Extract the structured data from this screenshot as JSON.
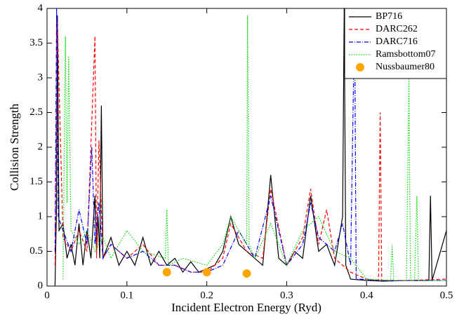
{
  "chart_data": {
    "type": "line",
    "xlabel": "Incident Electron Energy (Ryd)",
    "ylabel": "Collision Strength",
    "xlim": [
      0,
      0.5
    ],
    "xticks": [
      0,
      0.1,
      0.2,
      0.3,
      0.4,
      0.5
    ],
    "ylim": [
      0,
      4
    ],
    "yticks": [
      0,
      0.5,
      1,
      1.5,
      2,
      2.5,
      3,
      3.5,
      4
    ],
    "legend": "upper right",
    "series": [
      {
        "name": "BP716",
        "color": "#000000",
        "style": "solid",
        "x": [
          0.01,
          0.012,
          0.013,
          0.015,
          0.02,
          0.025,
          0.03,
          0.035,
          0.04,
          0.045,
          0.05,
          0.055,
          0.06,
          0.062,
          0.064,
          0.066,
          0.068,
          0.07,
          0.08,
          0.09,
          0.1,
          0.11,
          0.12,
          0.13,
          0.14,
          0.15,
          0.16,
          0.17,
          0.18,
          0.19,
          0.2,
          0.21,
          0.22,
          0.23,
          0.24,
          0.25,
          0.26,
          0.27,
          0.28,
          0.29,
          0.3,
          0.31,
          0.32,
          0.33,
          0.34,
          0.35,
          0.36,
          0.37,
          0.372,
          0.374,
          0.38,
          0.4,
          0.42,
          0.45,
          0.478,
          0.48,
          0.482,
          0.5
        ],
        "values": [
          0.0,
          1.2,
          3.9,
          0.8,
          0.9,
          0.4,
          0.6,
          0.3,
          0.9,
          0.3,
          0.8,
          0.4,
          1.3,
          0.5,
          1.0,
          0.4,
          2.6,
          0.4,
          0.7,
          0.3,
          0.5,
          0.3,
          0.7,
          0.3,
          0.5,
          0.3,
          0.4,
          0.2,
          0.35,
          0.2,
          0.25,
          0.3,
          0.5,
          1.0,
          0.6,
          0.5,
          0.4,
          0.3,
          1.6,
          0.4,
          0.3,
          0.5,
          0.4,
          1.3,
          0.5,
          0.6,
          0.3,
          1.0,
          4.0,
          0.3,
          0.1,
          0.08,
          0.07,
          0.08,
          0.08,
          1.3,
          0.08,
          0.8
        ]
      },
      {
        "name": "DARC262",
        "color": "#ff0000",
        "style": "dashed",
        "x": [
          0.01,
          0.013,
          0.02,
          0.03,
          0.04,
          0.05,
          0.06,
          0.062,
          0.065,
          0.07,
          0.08,
          0.1,
          0.12,
          0.14,
          0.16,
          0.18,
          0.2,
          0.22,
          0.23,
          0.25,
          0.27,
          0.28,
          0.3,
          0.32,
          0.33,
          0.34,
          0.35,
          0.36,
          0.38,
          0.4,
          0.415,
          0.417,
          0.419,
          0.45,
          0.5
        ],
        "values": [
          0.3,
          3.8,
          0.7,
          0.5,
          0.8,
          0.5,
          3.6,
          0.4,
          2.1,
          0.4,
          0.6,
          0.4,
          0.6,
          0.3,
          0.3,
          0.2,
          0.2,
          0.4,
          0.9,
          0.5,
          0.4,
          1.4,
          0.3,
          0.7,
          1.4,
          0.6,
          1.1,
          0.4,
          0.2,
          0.1,
          0.08,
          2.5,
          0.08,
          0.08,
          0.1
        ]
      },
      {
        "name": "DARC716",
        "color": "#0000ff",
        "style": "dashdot",
        "x": [
          0.01,
          0.012,
          0.014,
          0.02,
          0.03,
          0.04,
          0.05,
          0.056,
          0.06,
          0.065,
          0.07,
          0.08,
          0.1,
          0.12,
          0.14,
          0.16,
          0.18,
          0.2,
          0.22,
          0.24,
          0.26,
          0.28,
          0.3,
          0.32,
          0.33,
          0.34,
          0.36,
          0.37,
          0.38,
          0.385,
          0.387,
          0.39,
          0.42,
          0.45,
          0.5
        ],
        "values": [
          0.5,
          4.0,
          1.0,
          0.8,
          0.5,
          1.1,
          0.6,
          2.0,
          0.6,
          1.2,
          0.4,
          0.6,
          0.4,
          0.5,
          0.3,
          0.3,
          0.2,
          0.2,
          0.3,
          0.8,
          0.4,
          1.3,
          0.3,
          0.6,
          1.2,
          0.7,
          0.5,
          0.9,
          0.3,
          3.9,
          0.1,
          0.1,
          0.08,
          0.08,
          0.08
        ]
      },
      {
        "name": "Ramsbottom07",
        "color": "#00dd00",
        "style": "dotted",
        "x": [
          0.02,
          0.023,
          0.025,
          0.027,
          0.03,
          0.04,
          0.05,
          0.06,
          0.07,
          0.08,
          0.1,
          0.12,
          0.148,
          0.15,
          0.152,
          0.17,
          0.2,
          0.22,
          0.23,
          0.25,
          0.251,
          0.253,
          0.26,
          0.28,
          0.3,
          0.32,
          0.34,
          0.36,
          0.38,
          0.4,
          0.43,
          0.432,
          0.434,
          0.45,
          0.453,
          0.455,
          0.46,
          0.463,
          0.465,
          0.5
        ],
        "values": [
          0.1,
          3.6,
          1.2,
          3.3,
          0.8,
          0.6,
          0.8,
          0.5,
          0.7,
          0.4,
          0.8,
          0.5,
          0.4,
          1.1,
          0.3,
          0.4,
          0.3,
          0.6,
          1.0,
          0.6,
          3.9,
          0.6,
          0.4,
          0.9,
          0.3,
          0.8,
          1.0,
          0.5,
          0.4,
          0.1,
          0.08,
          0.6,
          0.08,
          0.08,
          3.0,
          0.08,
          0.08,
          1.3,
          0.08,
          0.08
        ]
      },
      {
        "name": "Nussbaumer80",
        "color": "#ffa500",
        "style": "points",
        "x": [
          0.15,
          0.2,
          0.25
        ],
        "values": [
          0.2,
          0.2,
          0.18
        ]
      }
    ]
  }
}
